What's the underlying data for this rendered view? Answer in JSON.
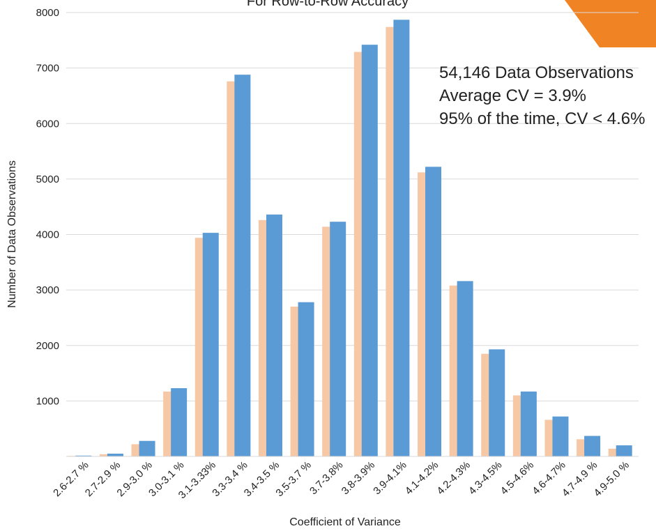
{
  "chart_data": {
    "type": "bar",
    "title": "For Row-to-Row Accuracy",
    "xlabel": "Coefficient of Variance",
    "ylabel": "Number of Data Observations",
    "ylim": [
      0,
      8000
    ],
    "yticks": [
      "1000",
      "2000",
      "3000",
      "4000",
      "5000",
      "6000",
      "7000",
      "8000"
    ],
    "grid": true,
    "categories": [
      "2.6-2.7 %",
      "2.7-2.9 %",
      "2.9-3.0 %",
      "3.0-3.1 %",
      "3.1-3.33%",
      "3.3-3.4 %",
      "3.4-3.5 %",
      "3.5-3.7 %",
      "3.7-3.8%",
      "3.8-3.9%",
      "3.9-4.1%",
      "4.1-4.2%",
      "4.2-4.3%",
      "4.3-4.5%",
      "4.5-4.6%",
      "4.6-4.7%",
      "4.7-4.9 %",
      "4.9-5.0 %"
    ],
    "series": [
      {
        "color": "#f6c8a6",
        "values": [
          10,
          40,
          220,
          1170,
          3940,
          6760,
          4260,
          2700,
          4140,
          7290,
          7740,
          5120,
          3080,
          1850,
          1100,
          660,
          310,
          140
        ]
      },
      {
        "color": "#5b9bd5",
        "values": [
          15,
          50,
          280,
          1230,
          4030,
          6880,
          4360,
          2780,
          4230,
          7420,
          7870,
          5220,
          3160,
          1930,
          1170,
          720,
          370,
          200
        ]
      }
    ],
    "annotations": [
      "54,146 Data Observations",
      "Average CV = 3.9%",
      "95% of the time, CV < 4.6%"
    ],
    "corner_accent_color": "#f08324"
  }
}
